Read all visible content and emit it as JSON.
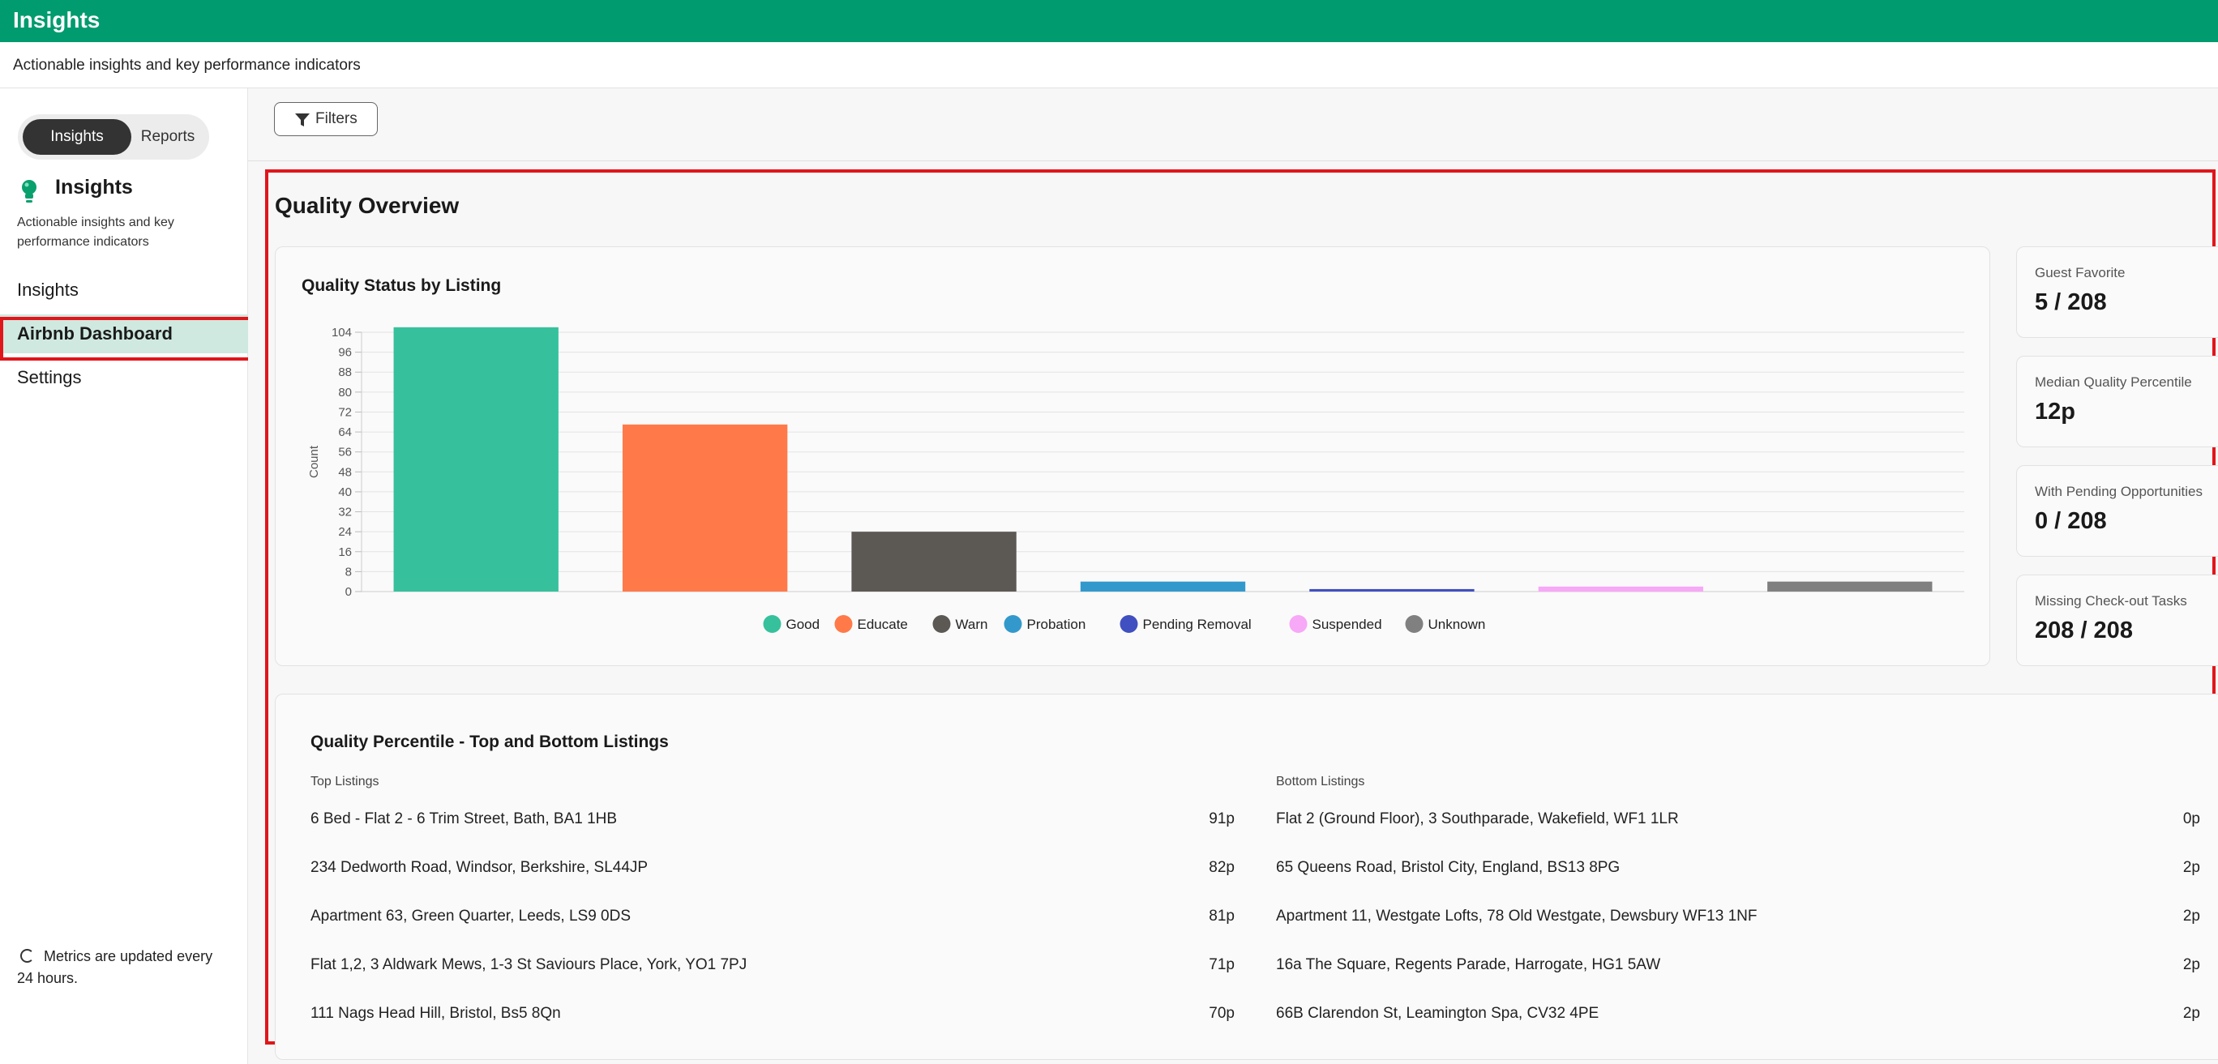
{
  "app": {
    "title": "Insights",
    "subtitle": "Actionable insights and key performance indicators"
  },
  "sidebar": {
    "toggle": [
      "Insights",
      "Reports"
    ],
    "heading": "Insights",
    "description": "Actionable insights and key performance indicators",
    "nav": [
      {
        "label": "Insights",
        "active": false
      },
      {
        "label": "Airbnb Dashboard",
        "active": true
      },
      {
        "label": "Settings",
        "active": false
      }
    ],
    "metrics_note": "Metrics are updated every 24 hours."
  },
  "filters": {
    "label": "Filters"
  },
  "section": {
    "title": "Quality Overview"
  },
  "chart": {
    "title": "Quality Status by Listing"
  },
  "chart_data": {
    "type": "bar",
    "title": "Quality Status by Listing",
    "ylabel": "Count",
    "xlabel": "",
    "ylim": [
      0,
      104
    ],
    "yticks": [
      0,
      8,
      16,
      24,
      32,
      40,
      48,
      56,
      64,
      72,
      80,
      88,
      96,
      104
    ],
    "categories": [
      "Good",
      "Educate",
      "Warn",
      "Probation",
      "Pending Removal",
      "Suspended",
      "Unknown"
    ],
    "values": [
      106,
      67,
      24,
      4,
      1,
      2,
      4
    ],
    "colors": [
      "#36c19c",
      "#ff7a48",
      "#5c5955",
      "#3399cc",
      "#4050c0",
      "#f7a8f7",
      "#808080"
    ],
    "grid": true,
    "legend": "bottom"
  },
  "stats": [
    {
      "label": "Guest Favorite",
      "value": "5 / 208"
    },
    {
      "label": "Median Quality Percentile",
      "value": "12p"
    },
    {
      "label": "With Pending Opportunities",
      "value": "0 / 208"
    },
    {
      "label": "Missing Check-out Tasks",
      "value": "208 / 208"
    }
  ],
  "percentile": {
    "title": "Quality Percentile - Top and Bottom Listings",
    "top_label": "Top Listings",
    "bottom_label": "Bottom Listings",
    "top": [
      {
        "name": "6 Bed - Flat 2 - 6 Trim Street, Bath, BA1 1HB",
        "score": "91p"
      },
      {
        "name": "234 Dedworth Road, Windsor, Berkshire, SL44JP",
        "score": "82p"
      },
      {
        "name": "Apartment 63, Green Quarter, Leeds, LS9 0DS",
        "score": "81p"
      },
      {
        "name": "Flat 1,2, 3 Aldwark Mews, 1-3 St Saviours Place, York, YO1 7PJ",
        "score": "71p"
      },
      {
        "name": "111 Nags Head Hill, Bristol, Bs5 8Qn",
        "score": "70p"
      }
    ],
    "bottom": [
      {
        "name": "Flat 2 (Ground Floor), 3 Southparade, Wakefield, WF1 1LR",
        "score": "0p"
      },
      {
        "name": "65 Queens Road, Bristol City, England, BS13 8PG",
        "score": "2p"
      },
      {
        "name": "Apartment 11, Westgate Lofts, 78 Old Westgate, Dewsbury WF13 1NF",
        "score": "2p"
      },
      {
        "name": "16a The Square, Regents Parade, Harrogate, HG1 5AW",
        "score": "2p"
      },
      {
        "name": "66B Clarendon St, Leamington Spa, CV32 4PE",
        "score": "2p"
      }
    ]
  }
}
